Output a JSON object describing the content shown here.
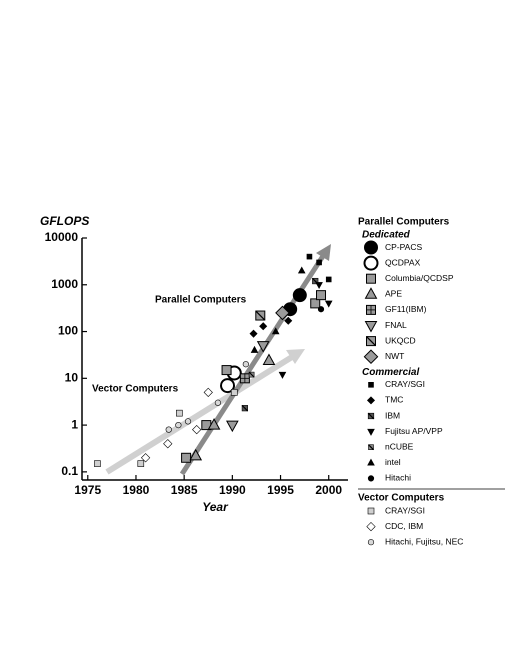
{
  "chart_data": {
    "type": "scatter",
    "y_label": "GFLOPS",
    "x_label": "Year",
    "annotations": [
      "Parallel Computers",
      "Vector Computers"
    ],
    "xlim": [
      1974.4,
      2002
    ],
    "xticks": [
      1975,
      1980,
      1985,
      1990,
      1995,
      2000
    ],
    "ylim": [
      0.067,
      10000
    ],
    "yticks": [
      0.1,
      1,
      10,
      100,
      1000,
      10000
    ],
    "y_log": true,
    "sections": [
      {
        "title": "Parallel Computers",
        "groups": [
          {
            "title": "Dedicated",
            "series": [
              {
                "name": "CP-PACS",
                "marker": "circle",
                "size": 6.5,
                "color": "#000000",
                "x": [
                  1996,
                  1997
                ],
                "y": [
                  300,
                  600
                ]
              },
              {
                "name": "QCDPAX",
                "marker": "circle-open",
                "size": 6.5,
                "color": "#ffffff",
                "x": [
                  1989.5,
                  1990.2
                ],
                "y": [
                  7,
                  13
                ]
              },
              {
                "name": "Columbia/QCDSP",
                "marker": "square",
                "size": 4.5,
                "color": "#9a9a9a",
                "x": [
                  1985.2,
                  1987.3,
                  1989.4,
                  1998.6,
                  1999.2
                ],
                "y": [
                  0.2,
                  1,
                  15,
                  400,
                  600
                ]
              },
              {
                "name": "APE",
                "marker": "triangle",
                "size": 5,
                "color": "#9a9a9a",
                "x": [
                  1986.2,
                  1988.1,
                  1993.8
                ],
                "y": [
                  0.22,
                  1,
                  24
                ]
              },
              {
                "name": "GF11(IBM)",
                "marker": "cross-square",
                "size": 4.5,
                "color": "#9a9a9a",
                "x": [
                  1991.3
                ],
                "y": [
                  10
                ]
              },
              {
                "name": "FNAL",
                "marker": "triangle-down",
                "size": 5,
                "color": "#9a9a9a",
                "x": [
                  1990,
                  1993.2
                ],
                "y": [
                  1,
                  50
                ]
              },
              {
                "name": "UKQCD",
                "marker": "hatched-square",
                "size": 4.5,
                "color": "#9a9a9a",
                "x": [
                  1992.9
                ],
                "y": [
                  220
                ]
              },
              {
                "name": "NWT",
                "marker": "diamond",
                "size": 5.5,
                "color": "#9a9a9a",
                "x": [
                  1995.2
                ],
                "y": [
                  250
                ]
              }
            ]
          },
          {
            "title": "Commercial",
            "series": [
              {
                "name": "CRAY/SGI",
                "marker": "square",
                "size": 2.5,
                "color": "#000000",
                "x": [
                  1998,
                  1999,
                  2000
                ],
                "y": [
                  4000,
                  3000,
                  1300
                ]
              },
              {
                "name": "TMC",
                "marker": "diamond",
                "size": 3,
                "color": "#000000",
                "x": [
                  1992.2,
                  1993.2,
                  1995.8
                ],
                "y": [
                  90,
                  130,
                  170
                ]
              },
              {
                "name": "IBM",
                "marker": "hatched-square",
                "size": 2.8,
                "color": "#555555",
                "x": [
                  1991.3,
                  1998.6
                ],
                "y": [
                  2.3,
                  1200
                ]
              },
              {
                "name": "Fujitsu AP/VPP",
                "marker": "triangle-down",
                "size": 3,
                "color": "#000000",
                "x": [
                  1995.2,
                  1999,
                  2000
                ],
                "y": [
                  12,
                  1000,
                  400
                ]
              },
              {
                "name": "nCUBE",
                "marker": "hatched-square",
                "size": 2.5,
                "color": "#888888",
                "x": [
                  1992
                ],
                "y": [
                  12
                ]
              },
              {
                "name": "intel",
                "marker": "triangle",
                "size": 3,
                "color": "#000000",
                "x": [
                  1992.3,
                  1994.5,
                  1997.2
                ],
                "y": [
                  40,
                  100,
                  2000
                ]
              },
              {
                "name": "Hitachi",
                "marker": "circle",
                "size": 2.8,
                "color": "#000000",
                "x": [
                  1999.2
                ],
                "y": [
                  300
                ]
              }
            ]
          }
        ]
      },
      {
        "title": "Vector Computers",
        "groups": [
          {
            "series": [
              {
                "name": "CRAY/SGI",
                "marker": "square",
                "size": 3,
                "color": "#cfcfcf",
                "x": [
                  1976,
                  1980.5,
                  1984.5,
                  1990.2
                ],
                "y": [
                  0.15,
                  0.15,
                  1.8,
                  5
                ]
              },
              {
                "name": "CDC, IBM",
                "marker": "diamond-open",
                "size": 3.5,
                "color": "#ffffff",
                "x": [
                  1981,
                  1983.3,
                  1986.3,
                  1987.5
                ],
                "y": [
                  0.2,
                  0.4,
                  0.8,
                  5
                ]
              },
              {
                "name": "Hitachi, Fujitsu, NEC",
                "marker": "circle-open",
                "size": 2.8,
                "color": "#d8d8d8",
                "x": [
                  1983.4,
                  1984.4,
                  1985.4,
                  1988.5,
                  1991.4
                ],
                "y": [
                  0.8,
                  1,
                  1.2,
                  3,
                  20
                ]
              }
            ]
          }
        ]
      }
    ]
  }
}
